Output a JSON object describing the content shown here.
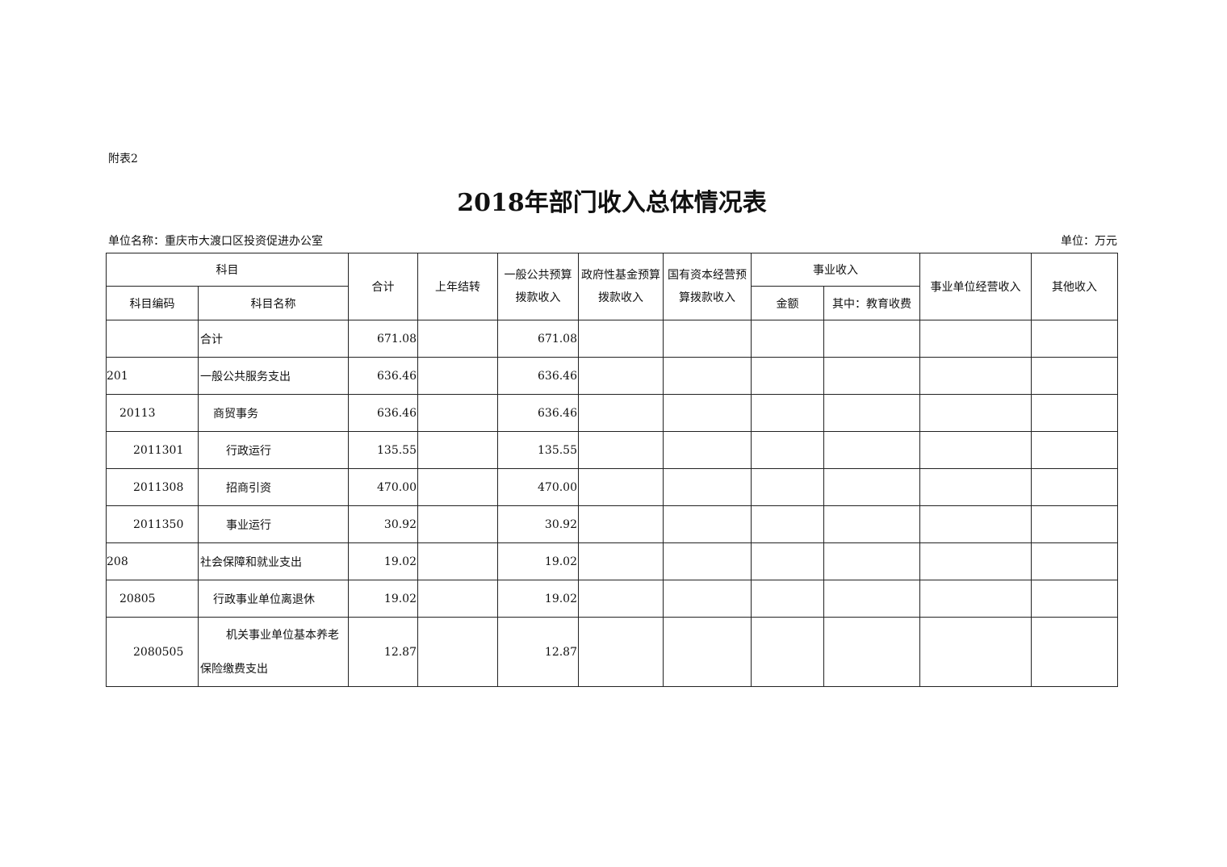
{
  "appendix_label": "附表2",
  "title": "2018年部门收入总体情况表",
  "unit_name": "单位名称：重庆市大渡口区投资促进办公室",
  "unit": "单位：万元",
  "headers": {
    "subject": "科目",
    "subject_code": "科目编码",
    "subject_name": "科目名称",
    "total": "合计",
    "carryover": "上年结转",
    "general_budget": "一般公共预算拨款收入",
    "gov_fund": "政府性基金预算拨款收入",
    "state_capital": "国有资本经营预算拨款收入",
    "business_income": "事业收入",
    "amount": "金额",
    "education_fee": "其中：教育收费",
    "business_operation": "事业单位经营收入",
    "other": "其他收入"
  },
  "rows": [
    {
      "code": "",
      "name": "合计",
      "level": 0,
      "total": "671.08",
      "general_budget": "671.08"
    },
    {
      "code": "201",
      "name": "一般公共服务支出",
      "level": 0,
      "total": "636.46",
      "general_budget": "636.46"
    },
    {
      "code": "20113",
      "name": "商贸事务",
      "level": 1,
      "total": "636.46",
      "general_budget": "636.46"
    },
    {
      "code": "2011301",
      "name": "行政运行",
      "level": 2,
      "total": "135.55",
      "general_budget": "135.55"
    },
    {
      "code": "2011308",
      "name": "招商引资",
      "level": 2,
      "total": "470.00",
      "general_budget": "470.00"
    },
    {
      "code": "2011350",
      "name": "事业运行",
      "level": 2,
      "total": "30.92",
      "general_budget": "30.92"
    },
    {
      "code": "208",
      "name": "社会保障和就业支出",
      "level": 0,
      "total": "19.02",
      "general_budget": "19.02"
    },
    {
      "code": "20805",
      "name": "行政事业单位离退休",
      "level": 1,
      "total": "19.02",
      "general_budget": "19.02"
    },
    {
      "code": "2080505",
      "name": "机关事业单位基本养老保险缴费支出",
      "level": 2,
      "total": "12.87",
      "general_budget": "12.87"
    }
  ]
}
